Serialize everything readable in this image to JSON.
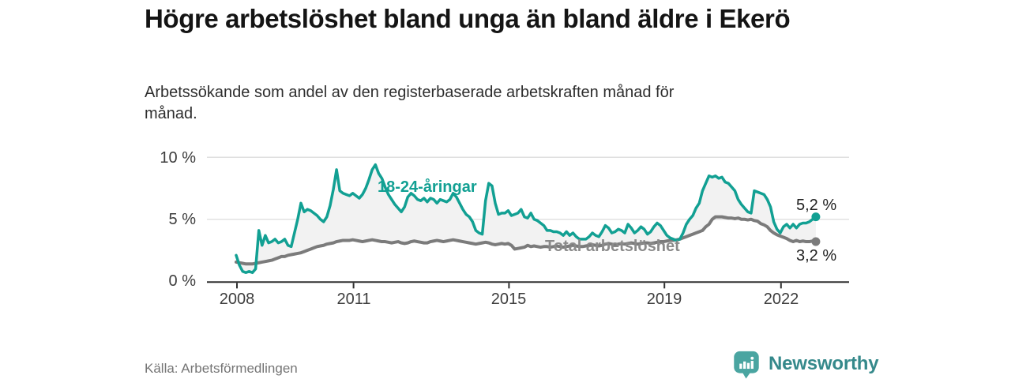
{
  "header": {
    "title": "Högre arbetslöshet bland unga än bland äldre i Ekerö",
    "subtitle": "Arbetssökande som andel av den registerbaserade arbetskraften månad för månad."
  },
  "chart_data": {
    "type": "line",
    "title": "Högre arbetslöshet bland unga än bland äldre i Ekerö",
    "subtitle": "Arbetssökande som andel av den registerbaserade arbetskraften månad för månad.",
    "unit": "%",
    "frequency": "monthly",
    "x_start": "2008-01",
    "x_end": "2022-12",
    "x_ticks": [
      "2008",
      "2011",
      "2015",
      "2019",
      "2022"
    ],
    "x_tick_years": [
      2008,
      2011,
      2015,
      2019,
      2022
    ],
    "y_ticks": [
      {
        "label": "10 %",
        "value": 10
      },
      {
        "label": "5 %",
        "value": 5
      },
      {
        "label": "0 %",
        "value": 0
      }
    ],
    "ylim": [
      0,
      10
    ],
    "grid": "horizontal",
    "fill_between_color": "#f2f2f2",
    "axis_color": "#303030",
    "grid_color": "#dcdcdc",
    "series": [
      {
        "name": "18-24-åringar",
        "color": "#12a093",
        "end_label": "5,2 %",
        "end_value": 5.2,
        "values": [
          2.1,
          1.3,
          0.8,
          0.7,
          0.8,
          0.7,
          1.0,
          4.1,
          2.9,
          3.7,
          3.1,
          3.2,
          3.4,
          3.1,
          3.2,
          3.4,
          2.9,
          2.8,
          3.9,
          5.0,
          6.3,
          5.6,
          5.8,
          5.7,
          5.5,
          5.3,
          5.0,
          4.8,
          5.2,
          6.1,
          7.4,
          9.0,
          7.3,
          7.1,
          7.0,
          6.9,
          7.1,
          6.9,
          6.7,
          7.0,
          7.5,
          8.2,
          9.0,
          9.4,
          8.7,
          8.3,
          7.6,
          7.0,
          6.6,
          6.2,
          5.9,
          5.6,
          6.0,
          6.8,
          7.1,
          6.9,
          6.6,
          6.5,
          6.7,
          6.4,
          6.7,
          6.6,
          6.3,
          6.6,
          6.5,
          6.4,
          6.6,
          7.1,
          6.8,
          6.3,
          5.8,
          5.4,
          5.2,
          4.8,
          4.1,
          3.9,
          3.8,
          6.5,
          7.9,
          7.7,
          6.3,
          5.4,
          5.5,
          5.5,
          5.7,
          5.3,
          5.4,
          5.5,
          5.8,
          5.2,
          5.1,
          5.5,
          5.0,
          4.9,
          4.7,
          4.5,
          4.1,
          4.1,
          4.0,
          4.0,
          3.9,
          3.7,
          4.0,
          3.7,
          3.9,
          3.6,
          3.4,
          3.4,
          3.4,
          3.6,
          3.9,
          3.7,
          3.6,
          4.0,
          4.5,
          4.3,
          3.9,
          4.0,
          4.2,
          4.1,
          3.9,
          4.6,
          4.3,
          3.9,
          4.1,
          4.4,
          4.2,
          3.8,
          4.0,
          4.4,
          4.7,
          4.5,
          4.1,
          3.7,
          3.5,
          3.4,
          3.3,
          3.4,
          3.9,
          4.6,
          5.0,
          5.3,
          5.9,
          6.3,
          7.3,
          7.9,
          8.5,
          8.4,
          8.5,
          8.3,
          8.4,
          8.0,
          7.9,
          7.6,
          7.3,
          6.6,
          6.2,
          5.9,
          5.6,
          5.5,
          7.3,
          7.2,
          7.1,
          7.0,
          6.6,
          6.0,
          4.8,
          4.2,
          3.9,
          4.4,
          4.6,
          4.3,
          4.6,
          4.3,
          4.6,
          4.7,
          4.7,
          4.8,
          5.0,
          5.2
        ]
      },
      {
        "name": "Total arbetslöshet",
        "color": "#7b7b7b",
        "end_label": "3,2 %",
        "end_value": 3.2,
        "values": [
          1.55,
          1.5,
          1.45,
          1.4,
          1.4,
          1.4,
          1.45,
          1.5,
          1.55,
          1.6,
          1.65,
          1.7,
          1.8,
          1.9,
          2.0,
          2.0,
          2.1,
          2.15,
          2.2,
          2.25,
          2.3,
          2.4,
          2.5,
          2.6,
          2.7,
          2.8,
          2.85,
          2.9,
          3.0,
          3.05,
          3.1,
          3.2,
          3.25,
          3.3,
          3.3,
          3.3,
          3.35,
          3.3,
          3.25,
          3.2,
          3.25,
          3.3,
          3.35,
          3.3,
          3.25,
          3.2,
          3.2,
          3.15,
          3.1,
          3.15,
          3.2,
          3.1,
          3.05,
          3.1,
          3.2,
          3.25,
          3.2,
          3.15,
          3.1,
          3.1,
          3.2,
          3.25,
          3.3,
          3.25,
          3.2,
          3.25,
          3.3,
          3.35,
          3.3,
          3.25,
          3.2,
          3.15,
          3.1,
          3.05,
          3.0,
          3.05,
          3.1,
          3.15,
          3.1,
          3.0,
          2.95,
          3.0,
          3.05,
          3.0,
          3.05,
          2.9,
          2.6,
          2.65,
          2.7,
          2.75,
          2.9,
          2.8,
          2.85,
          2.8,
          2.75,
          2.8,
          2.8,
          2.75,
          2.8,
          2.85,
          2.8,
          2.75,
          2.8,
          2.85,
          2.9,
          2.85,
          2.8,
          2.8,
          2.85,
          2.9,
          2.95,
          2.9,
          2.85,
          2.9,
          3.0,
          3.05,
          3.0,
          2.95,
          3.0,
          3.05,
          3.0,
          3.05,
          3.1,
          3.05,
          3.0,
          3.05,
          3.1,
          3.1,
          3.05,
          3.1,
          3.15,
          3.2,
          3.2,
          3.25,
          3.3,
          3.3,
          3.35,
          3.4,
          3.5,
          3.6,
          3.7,
          3.8,
          3.9,
          4.0,
          4.1,
          4.4,
          4.6,
          5.0,
          5.2,
          5.2,
          5.2,
          5.15,
          5.1,
          5.1,
          5.05,
          5.1,
          5.0,
          5.0,
          4.95,
          5.0,
          4.9,
          4.85,
          4.65,
          4.55,
          4.4,
          4.1,
          3.9,
          3.75,
          3.65,
          3.55,
          3.45,
          3.3,
          3.2,
          3.3,
          3.2,
          3.25,
          3.2,
          3.2,
          3.25,
          3.2
        ]
      }
    ]
  },
  "footer": {
    "source": "Källa: Arbetsförmedlingen",
    "brand": "Newsworthy"
  },
  "colors": {
    "accent_teal": "#12a093",
    "line_gray": "#7b7b7b",
    "logo_icon": "#4aa5a1",
    "logo_text": "#35898b"
  }
}
